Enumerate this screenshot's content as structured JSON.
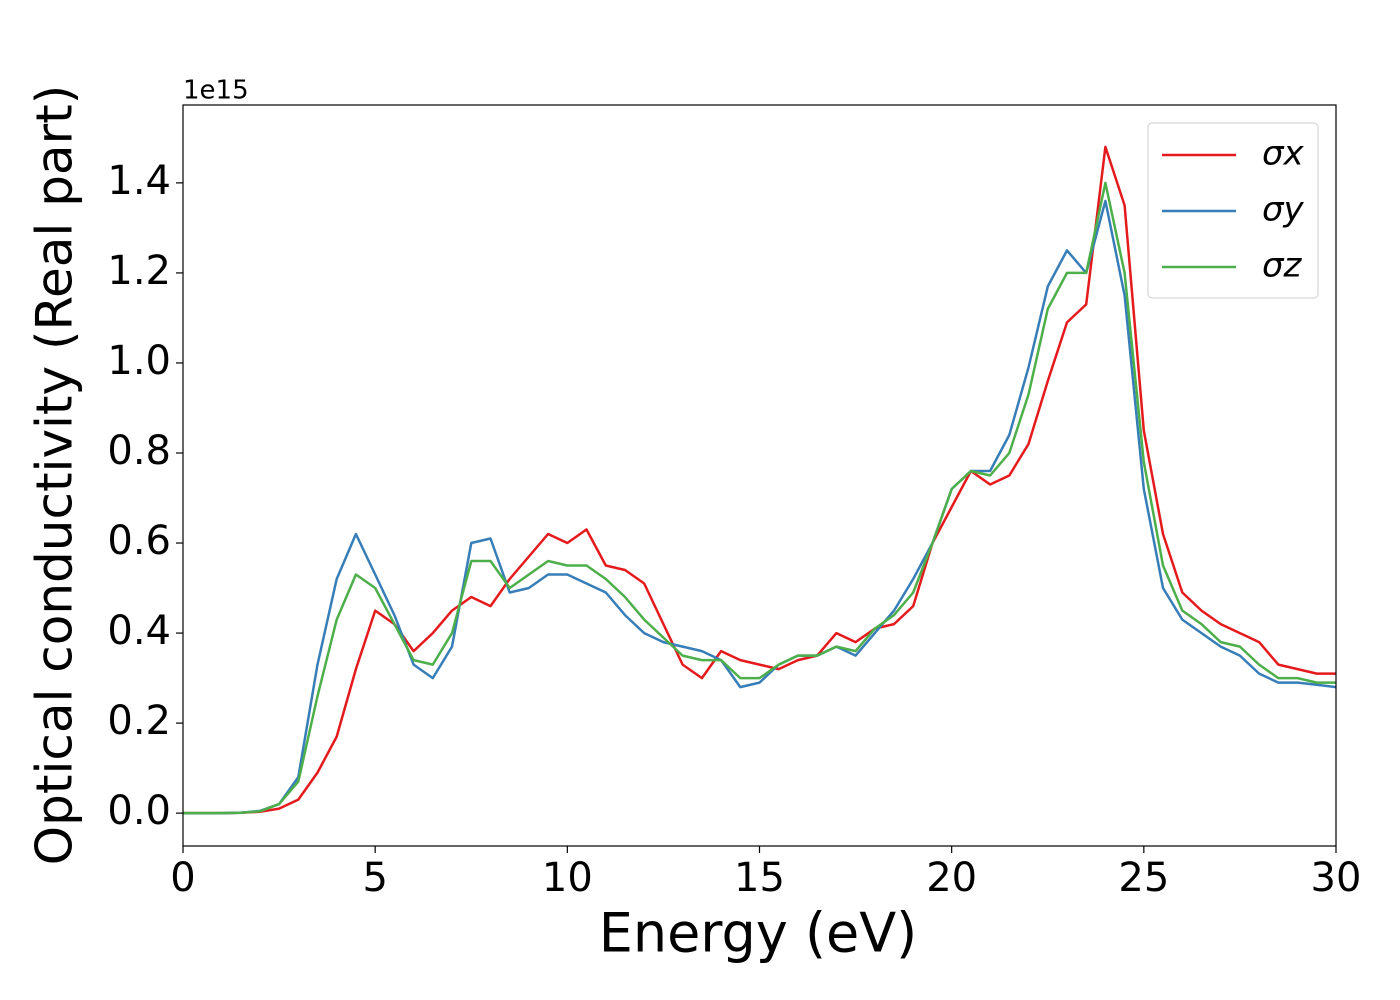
{
  "chart_data": {
    "type": "line",
    "xlabel": "Energy (eV)",
    "ylabel": "Optical conductivity (Real part)",
    "y_offset_label": "1e15",
    "x": [
      0,
      0.5,
      1,
      1.5,
      2,
      2.5,
      3,
      3.5,
      4,
      4.5,
      5,
      5.5,
      6,
      6.5,
      7,
      7.5,
      8,
      8.5,
      9,
      9.5,
      10,
      10.5,
      11,
      11.5,
      12,
      12.5,
      13,
      13.5,
      14,
      14.5,
      15,
      15.5,
      16,
      16.5,
      17,
      17.5,
      18,
      18.5,
      19,
      19.5,
      20,
      20.5,
      21,
      21.5,
      22,
      22.5,
      23,
      23.5,
      24,
      24.5,
      25,
      25.5,
      26,
      26.5,
      27,
      27.5,
      28,
      28.5,
      29,
      29.5,
      30
    ],
    "series": [
      {
        "name": "σx",
        "color": "#e41a1c",
        "values": [
          0,
          0,
          0,
          0.001,
          0.003,
          0.01,
          0.03,
          0.09,
          0.17,
          0.32,
          0.45,
          0.42,
          0.36,
          0.4,
          0.45,
          0.48,
          0.46,
          0.52,
          0.57,
          0.62,
          0.6,
          0.63,
          0.55,
          0.54,
          0.51,
          0.42,
          0.33,
          0.3,
          0.36,
          0.34,
          0.33,
          0.32,
          0.34,
          0.35,
          0.4,
          0.38,
          0.41,
          0.42,
          0.46,
          0.6,
          0.68,
          0.76,
          0.73,
          0.75,
          0.82,
          0.96,
          1.09,
          1.13,
          1.48,
          1.35,
          0.85,
          0.62,
          0.49,
          0.45,
          0.42,
          0.4,
          0.38,
          0.33,
          0.32,
          0.31,
          0.31
        ]
      },
      {
        "name": "σy",
        "color": "#377eb8",
        "values": [
          0,
          0,
          0,
          0.001,
          0.005,
          0.02,
          0.08,
          0.33,
          0.52,
          0.62,
          0.53,
          0.44,
          0.33,
          0.3,
          0.37,
          0.6,
          0.61,
          0.49,
          0.5,
          0.53,
          0.53,
          0.51,
          0.49,
          0.44,
          0.4,
          0.38,
          0.37,
          0.36,
          0.34,
          0.28,
          0.29,
          0.33,
          0.35,
          0.35,
          0.37,
          0.35,
          0.4,
          0.45,
          0.52,
          0.6,
          0.72,
          0.76,
          0.76,
          0.84,
          0.99,
          1.17,
          1.25,
          1.2,
          1.36,
          1.15,
          0.72,
          0.5,
          0.43,
          0.4,
          0.37,
          0.35,
          0.31,
          0.29,
          0.29,
          0.285,
          0.28
        ]
      },
      {
        "name": "σz",
        "color": "#4daf4a",
        "values": [
          0,
          0,
          0,
          0.001,
          0.004,
          0.02,
          0.07,
          0.26,
          0.43,
          0.53,
          0.5,
          0.42,
          0.34,
          0.33,
          0.4,
          0.56,
          0.56,
          0.5,
          0.53,
          0.56,
          0.55,
          0.55,
          0.52,
          0.48,
          0.43,
          0.39,
          0.35,
          0.34,
          0.34,
          0.3,
          0.3,
          0.33,
          0.35,
          0.35,
          0.37,
          0.36,
          0.41,
          0.44,
          0.49,
          0.6,
          0.72,
          0.76,
          0.75,
          0.8,
          0.93,
          1.12,
          1.2,
          1.2,
          1.4,
          1.2,
          0.78,
          0.55,
          0.45,
          0.42,
          0.38,
          0.37,
          0.33,
          0.3,
          0.3,
          0.29,
          0.29
        ]
      }
    ],
    "xlim": [
      0,
      30
    ],
    "xticks": [
      0,
      5,
      10,
      15,
      20,
      25,
      30
    ],
    "ylim": [
      -0.073,
      1.573
    ],
    "yticks": [
      {
        "value": 0,
        "label": "0.0"
      },
      0.2,
      0.4,
      0.6,
      0.8,
      {
        "value": 1,
        "label": "1.0"
      },
      1.2,
      1.4
    ],
    "legend": "upper right",
    "grid": false
  }
}
